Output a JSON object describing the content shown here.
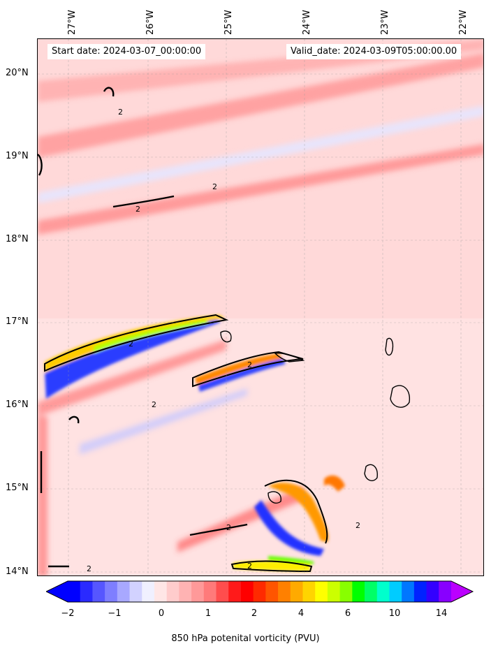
{
  "map": {
    "lon_labels": [
      "27°W",
      "26°W",
      "25°W",
      "24°W",
      "23°W",
      "22°W"
    ],
    "lat_labels": [
      "20°N",
      "19°N",
      "18°N",
      "17°N",
      "16°N",
      "15°N",
      "14°N"
    ],
    "start_date": "Start date: 2024-03-07_00:00:00",
    "valid_date": "Valid_date: 2024-03-09T05:00:00.00",
    "contour_label": "2"
  },
  "colorbar": {
    "label": "850 hPa potenital vorticity (PVU)",
    "ticks": [
      "−2",
      "−1",
      "0",
      "1",
      "2",
      "4",
      "6",
      "10",
      "14"
    ],
    "colors": [
      "#0000ff",
      "#2a2aff",
      "#5656ff",
      "#7e7eff",
      "#a8a8ff",
      "#d2d2ff",
      "#f0f0ff",
      "#ffe6e6",
      "#ffcccc",
      "#ffb3b3",
      "#ff9999",
      "#ff7a7a",
      "#ff4d4d",
      "#ff1a1a",
      "#ff0000",
      "#ff2a00",
      "#ff5500",
      "#ff8000",
      "#ffaa00",
      "#ffd400",
      "#ffff00",
      "#ccff00",
      "#88ff00",
      "#00ff00",
      "#00ff66",
      "#00ffcc",
      "#00ccff",
      "#0077ff",
      "#0022ff",
      "#3300ff",
      "#8800ff"
    ],
    "extend_low": "#0000ff",
    "extend_high": "#bb00ff"
  }
}
